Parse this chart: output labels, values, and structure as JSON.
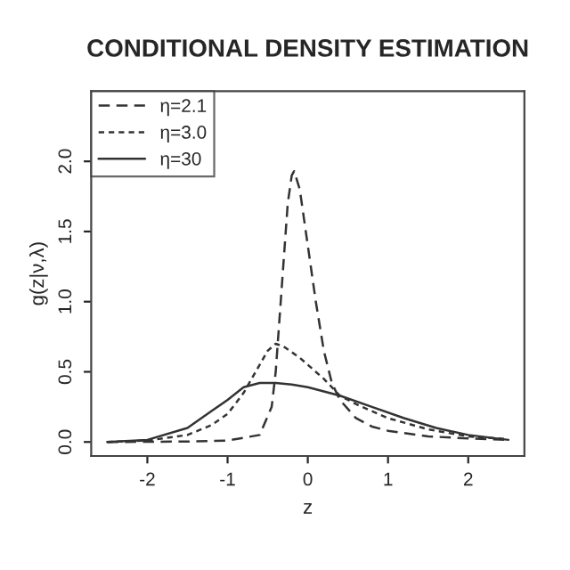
{
  "chart_data": {
    "type": "line",
    "title": "CONDITIONAL DENSITY ESTIMATION",
    "xlabel": "z",
    "ylabel": "g(z|ν,λ)",
    "xlim": [
      -2.7,
      2.7
    ],
    "ylim": [
      -0.1,
      2.5
    ],
    "xticks": [
      -2,
      -1,
      0,
      1,
      2
    ],
    "yticks": [
      {
        "value": 0,
        "label": "0.0"
      },
      {
        "value": 0.5,
        "label": "0.5"
      },
      {
        "value": 1,
        "label": "1.0"
      },
      {
        "value": 1.5,
        "label": "1.5"
      },
      {
        "value": 2,
        "label": "2.0"
      }
    ],
    "grid": false,
    "legend": "top left",
    "series": [
      {
        "name": "η=2.1",
        "color": "#333333",
        "line_style": "dashed",
        "x": [
          -2.5,
          -1.5,
          -1,
          -0.6,
          -0.45,
          -0.4,
          -0.35,
          -0.3,
          -0.25,
          -0.2,
          -0.17,
          -0.1,
          0,
          0.1,
          0.2,
          0.3,
          0.4,
          0.6,
          0.8,
          1,
          1.5,
          2,
          2.5
        ],
        "values": [
          0,
          0.003,
          0.01,
          0.05,
          0.25,
          0.5,
          0.9,
          1.3,
          1.7,
          1.9,
          1.93,
          1.8,
          1.4,
          1.0,
          0.65,
          0.42,
          0.3,
          0.17,
          0.11,
          0.08,
          0.04,
          0.025,
          0.015
        ]
      },
      {
        "name": "η=3.0",
        "color": "#333333",
        "line_style": "dotted",
        "x": [
          -2.5,
          -2,
          -1.5,
          -1.2,
          -1,
          -0.8,
          -0.6,
          -0.5,
          -0.4,
          -0.3,
          -0.1,
          0,
          0.2,
          0.4,
          0.6,
          0.8,
          1,
          1.5,
          2,
          2.5
        ],
        "values": [
          0,
          0.01,
          0.05,
          0.12,
          0.2,
          0.35,
          0.55,
          0.65,
          0.7,
          0.68,
          0.6,
          0.55,
          0.45,
          0.33,
          0.27,
          0.22,
          0.17,
          0.09,
          0.04,
          0.02
        ]
      },
      {
        "name": "η=30",
        "color": "#333333",
        "line_style": "solid",
        "x": [
          -2.5,
          -2,
          -1.5,
          -1.2,
          -1,
          -0.8,
          -0.6,
          -0.4,
          -0.2,
          0,
          0.4,
          0.8,
          1.2,
          1.6,
          2,
          2.5
        ],
        "values": [
          0,
          0.015,
          0.1,
          0.22,
          0.3,
          0.39,
          0.42,
          0.42,
          0.41,
          0.39,
          0.33,
          0.25,
          0.17,
          0.1,
          0.05,
          0.015
        ]
      }
    ]
  }
}
